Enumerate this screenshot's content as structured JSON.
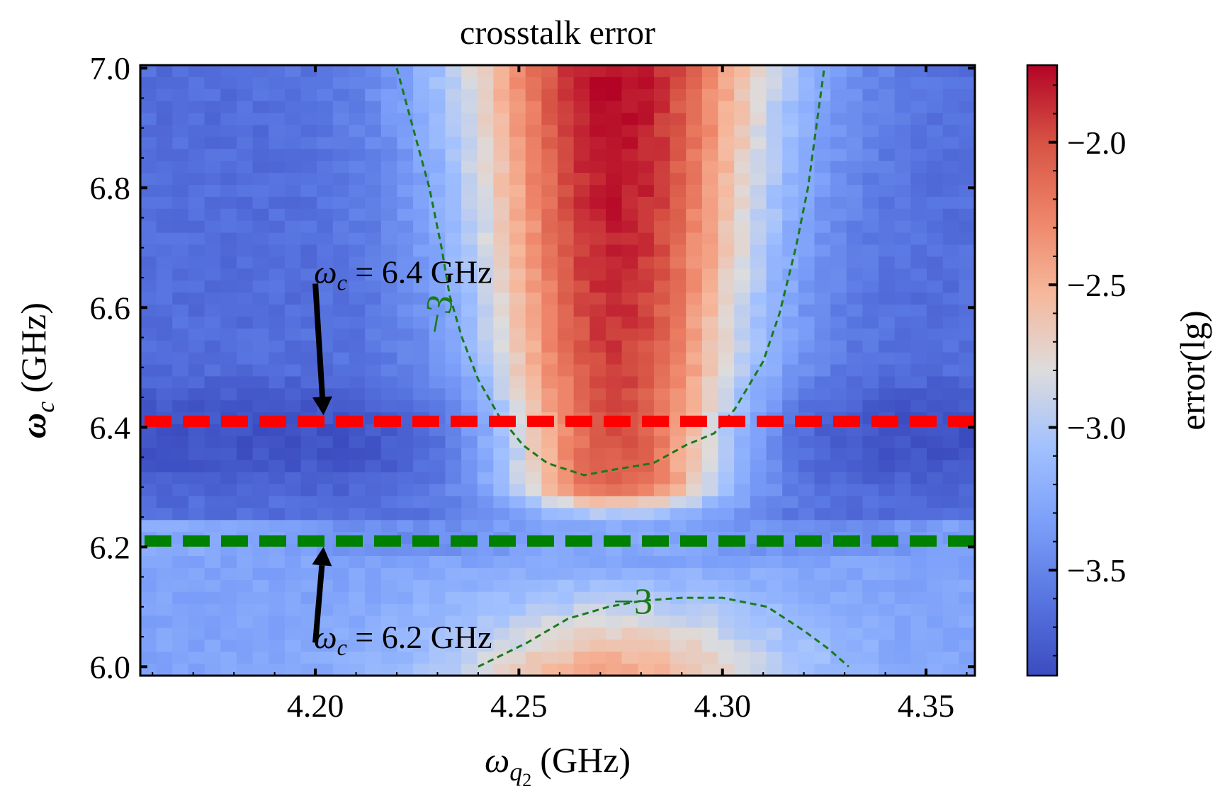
{
  "chart_data": {
    "type": "heatmap",
    "title": "crosstalk error",
    "xlabel": {
      "symbol": "ω",
      "sub": "q",
      "subsub": "2",
      "unit": "(GHz)"
    },
    "ylabel": {
      "symbol": "ω",
      "sub": "c",
      "unit": "(GHz)"
    },
    "xlim": [
      4.157,
      4.362
    ],
    "ylim": [
      5.985,
      7.005
    ],
    "x_ticks": [
      {
        "value": 4.2,
        "label": "4.20"
      },
      {
        "value": 4.25,
        "label": "4.25"
      },
      {
        "value": 4.3,
        "label": "4.30"
      },
      {
        "value": 4.35,
        "label": "4.35"
      }
    ],
    "y_ticks": [
      {
        "value": 6.0,
        "label": "6.0"
      },
      {
        "value": 6.2,
        "label": "6.2"
      },
      {
        "value": 6.4,
        "label": "6.4"
      },
      {
        "value": 6.6,
        "label": "6.6"
      },
      {
        "value": 6.8,
        "label": "6.8"
      },
      {
        "value": 7.0,
        "label": "7.0"
      }
    ],
    "grid": false,
    "colormap": "coolwarm",
    "colorbar": {
      "label": "error(lg)",
      "range": [
        -3.87,
        -1.73
      ],
      "ticks": [
        {
          "value": -2.0,
          "label": "−2.0"
        },
        {
          "value": -2.5,
          "label": "−2.5"
        },
        {
          "value": -3.0,
          "label": "−3.0"
        },
        {
          "value": -3.5,
          "label": "−3.5"
        }
      ]
    },
    "contour": {
      "level": -3,
      "label": "−3",
      "color": "#1a7a1a",
      "upper_branch": [
        [
          4.22,
          7.0
        ],
        [
          4.224,
          6.9
        ],
        [
          4.228,
          6.8
        ],
        [
          4.231,
          6.7
        ],
        [
          4.233,
          6.62
        ],
        [
          4.236,
          6.55
        ],
        [
          4.24,
          6.48
        ],
        [
          4.245,
          6.42
        ],
        [
          4.251,
          6.37
        ],
        [
          4.257,
          6.34
        ],
        [
          4.266,
          6.32
        ],
        [
          4.274,
          6.33
        ],
        [
          4.283,
          6.34
        ],
        [
          4.291,
          6.37
        ],
        [
          4.298,
          6.39
        ],
        [
          4.303,
          6.43
        ],
        [
          4.31,
          6.51
        ],
        [
          4.314,
          6.59
        ],
        [
          4.318,
          6.7
        ],
        [
          4.321,
          6.8
        ],
        [
          4.323,
          6.9
        ],
        [
          4.325,
          7.0
        ]
      ],
      "lower_branch": [
        [
          4.24,
          6.0
        ],
        [
          4.252,
          6.04
        ],
        [
          4.262,
          6.08
        ],
        [
          4.272,
          6.1
        ],
        [
          4.28,
          6.11
        ],
        [
          4.29,
          6.115
        ],
        [
          4.3,
          6.115
        ],
        [
          4.311,
          6.1
        ],
        [
          4.32,
          6.06
        ],
        [
          4.326,
          6.03
        ],
        [
          4.331,
          6.0
        ]
      ]
    },
    "reference_lines": [
      {
        "y": 6.41,
        "color": "#ff0000",
        "style": "dashed",
        "label": "ω_c = 6.4 GHz"
      },
      {
        "y": 6.21,
        "color": "#008000",
        "style": "dashed",
        "label": "ω_c = 6.2 GHz"
      }
    ],
    "annotations": [
      {
        "symbol": "ω",
        "sub": "c",
        "text": " = 6.4 GHz",
        "x": 4.2,
        "y": 6.66,
        "arrow_from": [
          4.2,
          6.64
        ],
        "arrow_to": [
          4.202,
          6.42
        ]
      },
      {
        "symbol": "ω",
        "sub": "c",
        "text": " = 6.2 GHz",
        "x": 4.2,
        "y": 6.05,
        "arrow_from": [
          4.2,
          6.04
        ],
        "arrow_to": [
          4.202,
          6.2
        ]
      }
    ]
  }
}
